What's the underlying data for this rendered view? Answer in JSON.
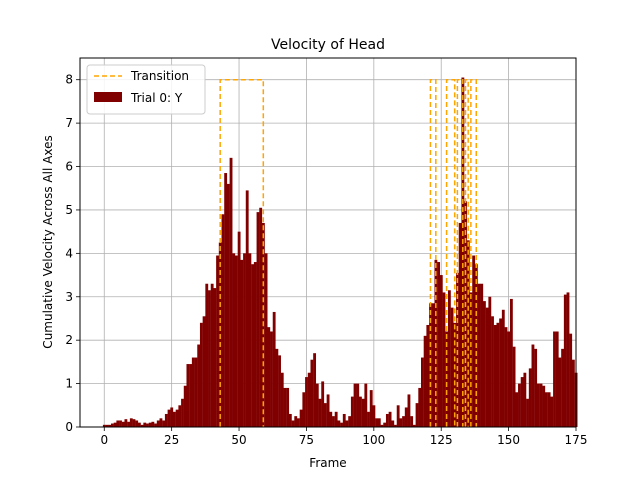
{
  "chart_data": {
    "type": "bar",
    "title": "Velocity of Head",
    "xlabel": "Frame",
    "ylabel": "Cumulative Velocity Across All Axes",
    "xlim": [
      -9,
      175
    ],
    "ylim": [
      0,
      8.5
    ],
    "grid": true,
    "legend_position": "top-left",
    "x_ticks": [
      0,
      25,
      50,
      75,
      100,
      125,
      150,
      175
    ],
    "y_ticks": [
      0,
      1,
      2,
      3,
      4,
      5,
      6,
      7,
      8
    ],
    "bar_color": "#800000",
    "transition_color": "#ffa500",
    "series": [
      {
        "name": "Trial 0: Y",
        "x_start": 0,
        "values": [
          0.05,
          0.05,
          0.05,
          0.08,
          0.1,
          0.15,
          0.15,
          0.12,
          0.18,
          0.12,
          0.2,
          0.18,
          0.15,
          0.1,
          0.05,
          0.1,
          0.08,
          0.1,
          0.12,
          0.08,
          0.15,
          0.2,
          0.15,
          0.3,
          0.4,
          0.45,
          0.35,
          0.4,
          0.5,
          0.65,
          0.95,
          1.45,
          1.45,
          1.6,
          1.6,
          1.9,
          2.4,
          2.55,
          3.3,
          3.15,
          3.3,
          3.2,
          3.95,
          4.25,
          4.9,
          5.85,
          5.6,
          6.2,
          4.0,
          3.95,
          4.5,
          3.85,
          4.0,
          5.45,
          4.0,
          3.75,
          3.8,
          4.95,
          5.05,
          4.7,
          4.0,
          2.3,
          2.2,
          2.65,
          1.8,
          1.65,
          1.25,
          0.9,
          0.9,
          0.3,
          0.15,
          0.25,
          0.2,
          0.4,
          0.8,
          1.15,
          1.25,
          1.55,
          1.7,
          1.0,
          0.65,
          1.05,
          0.55,
          0.75,
          0.35,
          0.25,
          0.35,
          0.15,
          0.1,
          0.3,
          0.15,
          0.25,
          0.7,
          1.0,
          1.0,
          0.7,
          0.65,
          1.0,
          0.35,
          0.85,
          0.5,
          0.2,
          0.2,
          0.05,
          0.1,
          0.3,
          0.35,
          0.15,
          0.05,
          0.5,
          0.2,
          0.25,
          0.45,
          0.75,
          0.25,
          0.05,
          0.55,
          0.9,
          1.6,
          2.1,
          2.35,
          2.85,
          2.85,
          3.85,
          3.8,
          3.5,
          3.1,
          2.2,
          3.15,
          2.75,
          2.4,
          3.55,
          4.7,
          8.05,
          5.2,
          4.3,
          3.1,
          3.95,
          3.75,
          3.3,
          3.3,
          2.9,
          2.75,
          3.0,
          2.55,
          2.35,
          2.4,
          2.5,
          2.7,
          2.3,
          2.2,
          2.95,
          1.85,
          0.8,
          1.0,
          1.15,
          1.25,
          0.65,
          1.35,
          1.9,
          1.8,
          1.0,
          1.0,
          0.95,
          0.8,
          0.8,
          0.7,
          2.2,
          2.2,
          1.6,
          1.8,
          3.05,
          3.1,
          2.15,
          1.55,
          1.25
        ]
      },
      {
        "name": "Transition",
        "style": "dashed",
        "segments": [
          {
            "x": [
              43,
              43,
              59,
              59
            ],
            "y": [
              0,
              8,
              8,
              0
            ]
          },
          {
            "x": [
              121,
              121,
              123,
              123
            ],
            "y": [
              0,
              8,
              8,
              0
            ]
          },
          {
            "x": [
              127,
              127,
              130,
              130
            ],
            "y": [
              0,
              8,
              8,
              0
            ]
          },
          {
            "x": [
              131,
              131,
              133,
              133
            ],
            "y": [
              0,
              8,
              8,
              0
            ]
          },
          {
            "x": [
              134,
              134,
              135,
              135
            ],
            "y": [
              0,
              8,
              8,
              0
            ]
          },
          {
            "x": [
              136,
              136,
              138,
              138
            ],
            "y": [
              0,
              8,
              8,
              0
            ]
          }
        ]
      }
    ],
    "legend": [
      "Transition",
      "Trial 0: Y"
    ]
  }
}
